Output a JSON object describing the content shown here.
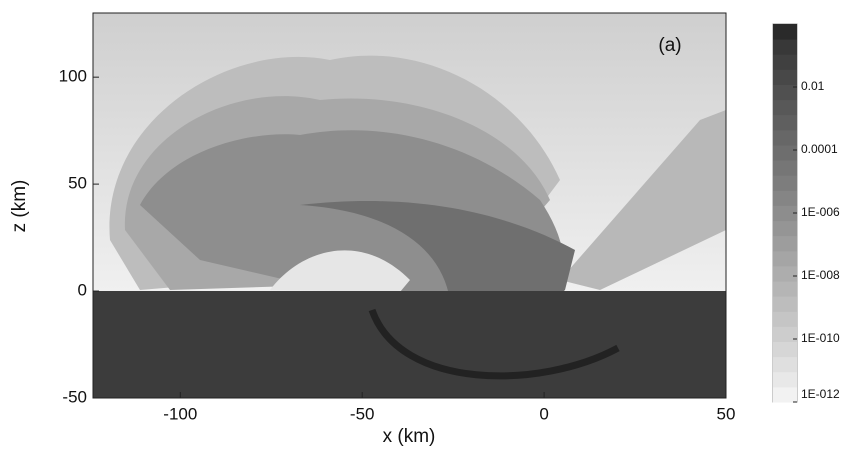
{
  "chart_data": {
    "type": "contour",
    "xlabel": "x (km)",
    "ylabel": "z (km)",
    "annotation": "(a)",
    "xlim": [
      -124,
      50
    ],
    "xticks": [
      -100,
      -50,
      0,
      50
    ],
    "ylim": [
      -50,
      130
    ],
    "yticks": [
      -50,
      0,
      50,
      100
    ],
    "colorbar": {
      "scale": "log",
      "clim": [
        1e-12,
        1
      ],
      "ticks": [
        {
          "value": 1e-12,
          "label": "1E-012"
        },
        {
          "value": 1e-10,
          "label": "1E-010"
        },
        {
          "value": 1e-08,
          "label": "1E-008"
        },
        {
          "value": 1e-06,
          "label": "1E-006"
        },
        0.0001,
        0.01
      ],
      "colors": [
        "#f2f2f2",
        "#e8e8e8",
        "#dfdfdf",
        "#d6d6d6",
        "#cdcdcd",
        "#c5c5c5",
        "#bdbdbd",
        "#b5b5b5",
        "#adadad",
        "#a5a5a5",
        "#9d9d9d",
        "#959595",
        "#8d8d8d",
        "#858585",
        "#7d7d7d",
        "#767676",
        "#6e6e6e",
        "#676767",
        "#5f5f5f",
        "#585858",
        "#505050",
        "#484848",
        "#404040",
        "#383838",
        "#2a2a2a"
      ]
    }
  }
}
